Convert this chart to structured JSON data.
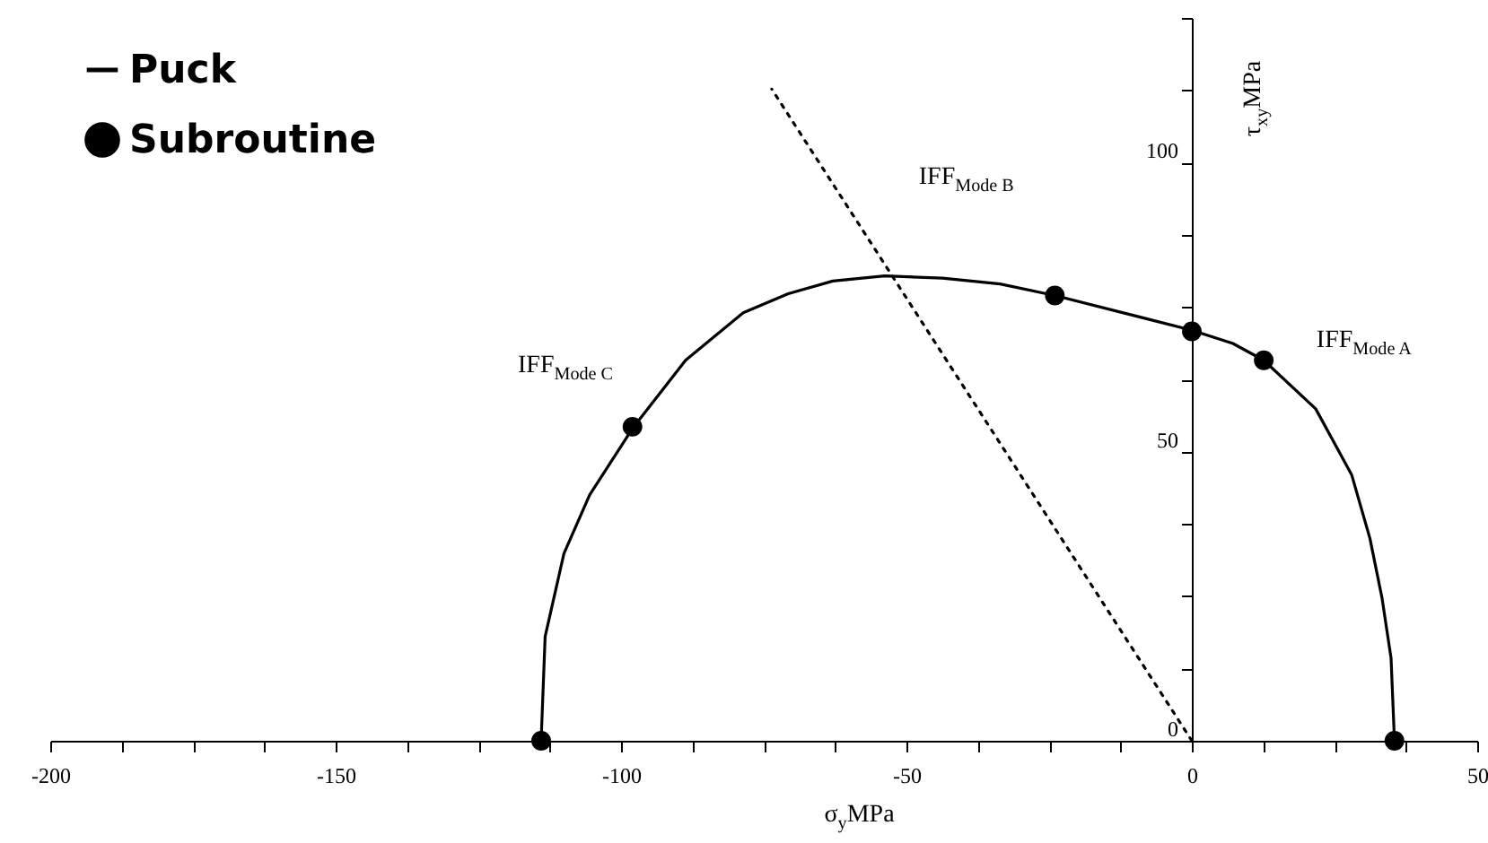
{
  "chart_data": {
    "type": "line",
    "xlabel": "σ$_{y}$MPa",
    "ylabel": "τ$_{xy}$MPa",
    "xlim": [
      -200,
      50
    ],
    "ylim": [
      0,
      125
    ],
    "xticks": [
      -200,
      {
        "value": -187.5,
        "label": null
      },
      {
        "value": -175,
        "label": null
      },
      {
        "value": -162.5,
        "label": null
      },
      -150,
      {
        "value": -137.5,
        "label": null
      },
      {
        "value": -125,
        "label": null
      },
      {
        "value": -112.5,
        "label": null
      },
      -100,
      {
        "value": -87.5,
        "label": null
      },
      {
        "value": -75,
        "label": null
      },
      {
        "value": -62.5,
        "label": null
      },
      -50,
      {
        "value": -37.5,
        "label": null
      },
      {
        "value": -25,
        "label": null
      },
      {
        "value": -12.5,
        "label": null
      },
      0,
      {
        "value": 12.5,
        "label": null
      },
      {
        "value": 25,
        "label": null
      },
      {
        "value": 37.5,
        "label": null
      },
      50
    ],
    "yticks": [
      0,
      {
        "value": 12.5,
        "label": null
      },
      {
        "value": 25,
        "label": null
      },
      {
        "value": 37.5,
        "label": null
      },
      50,
      {
        "value": 62.5,
        "label": null
      },
      {
        "value": 75,
        "label": null
      },
      {
        "value": 87.5,
        "label": null
      },
      100,
      {
        "value": 112.5,
        "label": null
      },
      {
        "value": 125,
        "label": null
      }
    ],
    "grid": false,
    "legend": "top left",
    "series": [
      {
        "name": "Puck",
        "type": "line",
        "color": "#000000",
        "line_style": "solid",
        "x": [
          -114,
          -113.3,
          -110,
          -105.5,
          -98,
          -88.7,
          -78.6,
          -70.7,
          -62.9,
          -53.8,
          -43.7,
          -33.6,
          -24,
          0,
          7.2,
          12.6,
          21.7,
          28,
          31.2,
          33.3,
          34.9,
          35.5
        ],
        "values": [
          0,
          18,
          32.4,
          42.5,
          54,
          65.8,
          74,
          77.3,
          79.5,
          80.4,
          80,
          79,
          77,
          71,
          68.7,
          65.8,
          57.4,
          46,
          35,
          24.8,
          14.3,
          0
        ]
      },
      {
        "name": "Subroutine",
        "type": "scatter",
        "color": "#000000",
        "marker": "circle",
        "x": [
          -114,
          -98,
          -24,
          0,
          12.6,
          35.5
        ],
        "values": [
          0,
          54.3,
          77,
          70.8,
          65.8,
          0
        ]
      },
      {
        "type": "line",
        "color": "#000000",
        "line_style": "dotted",
        "x": [
          0,
          -73.6
        ],
        "values": [
          0,
          112.7
        ]
      }
    ],
    "annotations": [
      "IFF$_{Mode C}$",
      "IFF$_{Mode B}$",
      "IFF$_{Mode A}$"
    ]
  }
}
